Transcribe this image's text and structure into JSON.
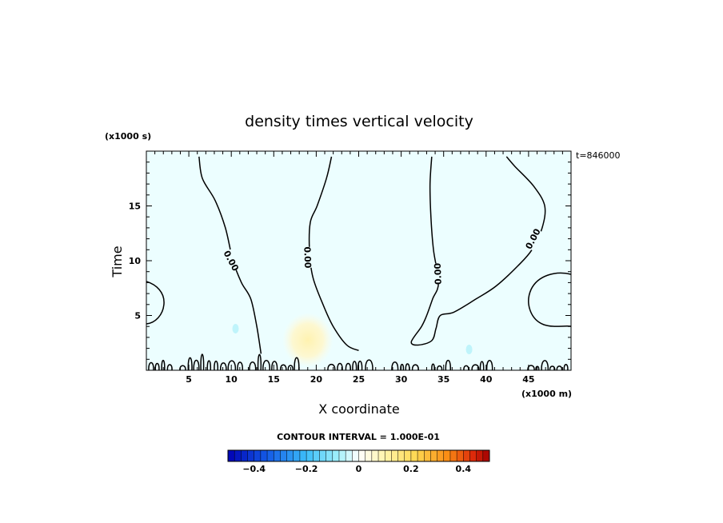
{
  "chart_data": {
    "type": "heatmap",
    "title": "density times vertical velocity",
    "xlabel": "X coordinate",
    "ylabel": "Time",
    "x_unit": "(x1000 m)",
    "y_unit": "(x1000 s)",
    "time_label": "t=846000",
    "xlim": [
      0,
      50
    ],
    "ylim": [
      0,
      20
    ],
    "xticks": [
      5,
      10,
      15,
      20,
      25,
      30,
      35,
      40,
      45
    ],
    "yticks": [
      5,
      10,
      15
    ],
    "contour_label": "0.00",
    "contour_interval_text": "CONTOUR INTERVAL = 1.000E-01",
    "colorbar": {
      "min": -0.5,
      "max": 0.5,
      "tick_values": [
        -0.4,
        -0.2,
        0,
        0.2,
        0.4
      ],
      "tick_labels": [
        "−0.4",
        "−0.2",
        "0",
        "0.2",
        "0.4"
      ]
    },
    "zero_contours": [
      {
        "name": "contour-a",
        "points": [
          [
            6.2,
            19.5
          ],
          [
            6.6,
            17.5
          ],
          [
            8.1,
            15.5
          ],
          [
            9.3,
            13.0
          ],
          [
            10.2,
            10.0
          ],
          [
            11.2,
            8.0
          ],
          [
            12.3,
            6.5
          ],
          [
            13.0,
            4.0
          ],
          [
            13.5,
            1.5
          ]
        ]
      },
      {
        "name": "contour-b",
        "points": [
          [
            21.8,
            19.5
          ],
          [
            21.2,
            17.5
          ],
          [
            20.1,
            15.0
          ],
          [
            19.3,
            13.5
          ],
          [
            19.2,
            11.0
          ],
          [
            19.6,
            8.5
          ],
          [
            20.8,
            6.0
          ],
          [
            22.0,
            4.0
          ],
          [
            23.6,
            2.3
          ],
          [
            25.0,
            1.8
          ]
        ]
      },
      {
        "name": "contour-c",
        "points": [
          [
            33.6,
            19.5
          ],
          [
            33.4,
            17.0
          ],
          [
            33.5,
            14.0
          ],
          [
            33.8,
            11.0
          ],
          [
            34.4,
            8.0
          ],
          [
            33.7,
            6.5
          ],
          [
            33.0,
            5.0
          ],
          [
            32.4,
            4.0
          ],
          [
            31.2,
            2.6
          ],
          [
            32.0,
            2.3
          ],
          [
            33.6,
            2.7
          ],
          [
            34.1,
            3.8
          ],
          [
            34.6,
            5.0
          ],
          [
            36.2,
            5.3
          ],
          [
            38.8,
            6.5
          ],
          [
            41.2,
            7.7
          ],
          [
            43.7,
            9.5
          ],
          [
            45.4,
            11.0
          ],
          [
            46.6,
            13.0
          ],
          [
            46.9,
            15.0
          ],
          [
            45.6,
            16.8
          ],
          [
            43.4,
            18.6
          ],
          [
            42.4,
            19.5
          ]
        ]
      }
    ],
    "positive_region": {
      "name": "positive-anomaly",
      "center": [
        19.0,
        3.0
      ],
      "extent": [
        6.0,
        2.5
      ],
      "value": 0.04
    },
    "negative_spots": [
      {
        "name": "negative-spot-1",
        "center": [
          10.5,
          3.8
        ],
        "value": -0.05
      },
      {
        "name": "negative-spot-2",
        "center": [
          38.0,
          1.9
        ],
        "value": -0.05
      }
    ]
  },
  "colors": {
    "background_field": "#ecfeff",
    "positive_field": "#fef6c8",
    "contour": "#000000"
  }
}
